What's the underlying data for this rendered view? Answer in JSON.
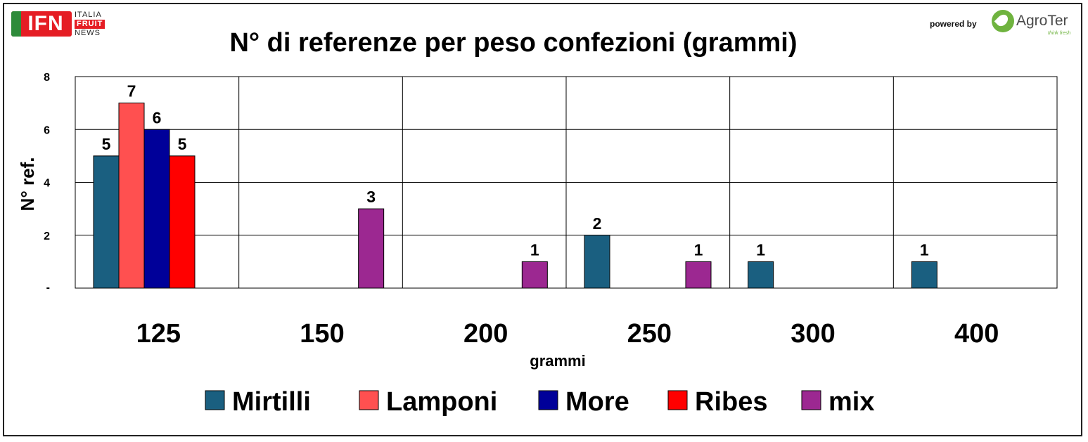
{
  "header": {
    "ifn_logo": {
      "letters": "IFN",
      "line1": "ITALIA",
      "line2": "FRUIT",
      "line3": "NEWS"
    },
    "powered_by": "powered by",
    "agroter_logo": {
      "name": "AgroTer",
      "tagline": "think fresh"
    }
  },
  "chart_data": {
    "type": "bar",
    "title": "N° di referenze per peso confezioni (grammi)",
    "xlabel": "grammi",
    "ylabel": "N° ref.",
    "categories": [
      "125",
      "150",
      "200",
      "250",
      "300",
      "400"
    ],
    "y_ticks": [
      "-",
      "2",
      "4",
      "6",
      "8"
    ],
    "ylim": [
      0,
      8
    ],
    "grid": true,
    "legend_position": "bottom",
    "series": [
      {
        "name": "Mirtilli",
        "color": "#1a5f80",
        "values": [
          5,
          null,
          null,
          2,
          1,
          1
        ]
      },
      {
        "name": "Lamponi",
        "color": "#ff5050",
        "values": [
          7,
          null,
          null,
          null,
          null,
          null
        ]
      },
      {
        "name": "More",
        "color": "#000099",
        "values": [
          6,
          null,
          null,
          null,
          null,
          null
        ]
      },
      {
        "name": "Ribes",
        "color": "#ff0000",
        "values": [
          5,
          null,
          null,
          null,
          null,
          null
        ]
      },
      {
        "name": "mix",
        "color": "#9c2891",
        "values": [
          null,
          3,
          1,
          1,
          null,
          null
        ]
      }
    ]
  }
}
